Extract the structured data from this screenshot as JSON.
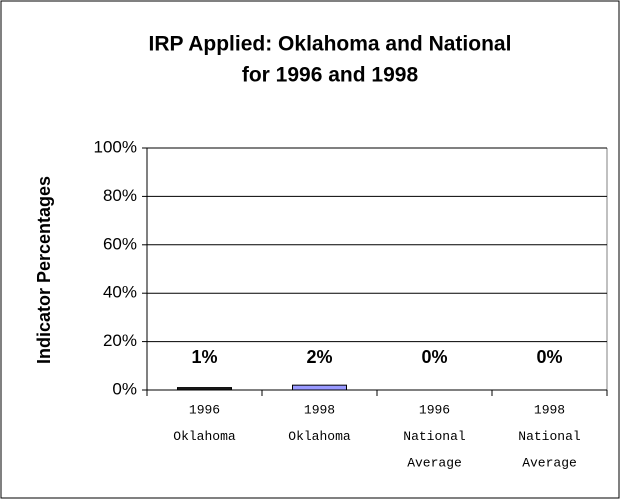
{
  "chart_data": {
    "type": "bar",
    "title": [
      "IRP Applied: Oklahoma and National",
      "for 1996 and 1998"
    ],
    "y_label": "Indicator Percentages",
    "categories": [
      [
        "1996",
        "Oklahoma"
      ],
      [
        "1998",
        "Oklahoma"
      ],
      [
        "1996",
        "National",
        "Average"
      ],
      [
        "1998",
        "National",
        "Average"
      ]
    ],
    "values": [
      1,
      2,
      0,
      0
    ],
    "value_labels": [
      "1%",
      "2%",
      "0%",
      "0%"
    ],
    "colors": [
      "#1a1a1a",
      "#9999ff",
      "#9999ff",
      "#9999ff"
    ],
    "ylim": [
      0,
      100
    ],
    "yticks": [
      {
        "value": 0,
        "label": "0%"
      },
      {
        "value": 20,
        "label": "20%"
      },
      {
        "value": 40,
        "label": "40%"
      },
      {
        "value": 60,
        "label": "60%"
      },
      {
        "value": 80,
        "label": "80%"
      },
      {
        "value": 100,
        "label": "100%"
      }
    ],
    "grid": true
  }
}
